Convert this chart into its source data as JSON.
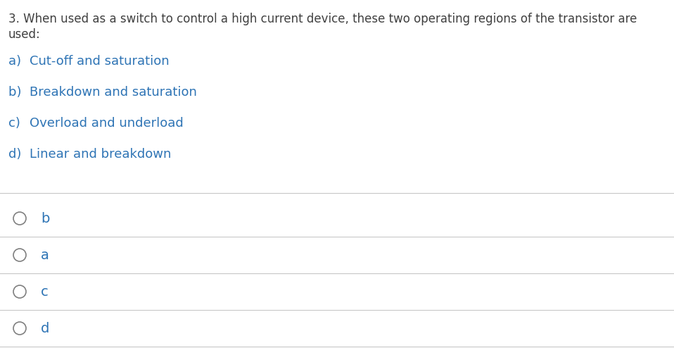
{
  "background_color": "#ffffff",
  "text_color": "#2e74b5",
  "question_color": "#404040",
  "answer_label_color": "#c07820",
  "question_line1": "3. When used as a switch to control a high current device, these two operating regions of the transistor are",
  "question_line2": "used:",
  "options": [
    [
      "a)  ",
      "Cut-off and saturation"
    ],
    [
      "b)  ",
      "Breakdown and saturation"
    ],
    [
      "c)  ",
      "Overload and underload"
    ],
    [
      "d)  ",
      "Linear and breakdown"
    ]
  ],
  "answer_options": [
    "b",
    "a",
    "c",
    "d"
  ],
  "question_fontsize": 12.0,
  "option_fontsize": 13.0,
  "answer_fontsize": 14.0,
  "separator_color": "#c8c8c8",
  "circle_color": "#808080",
  "fig_width": 9.58,
  "fig_height": 4.94,
  "dpi": 100
}
